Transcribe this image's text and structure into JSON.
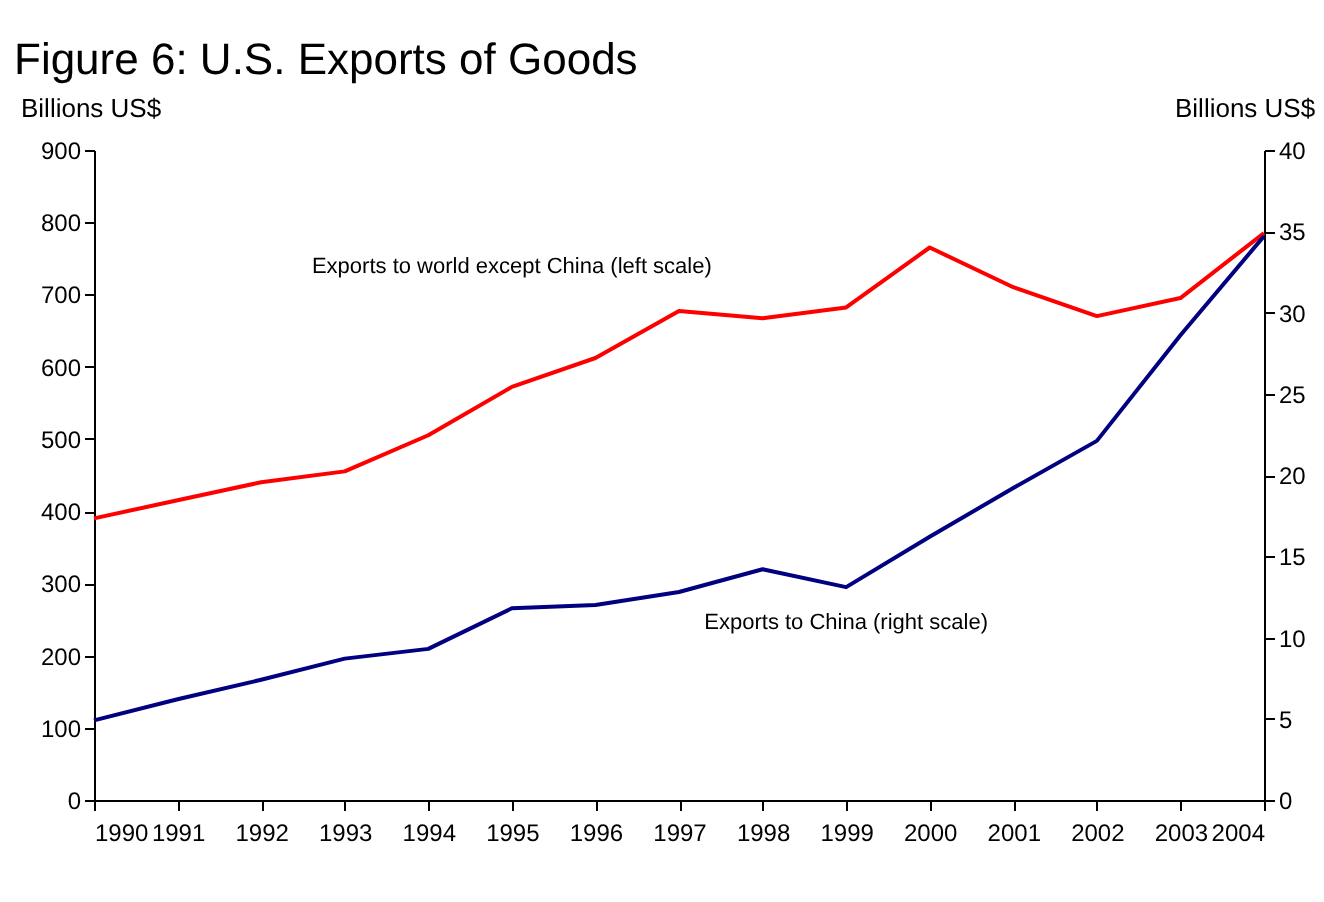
{
  "chart_data": {
    "type": "line",
    "title": "Figure 6: U.S. Exports of Goods",
    "ylabel": "Billions US$",
    "y2label": "Billions US$",
    "x": [
      1990,
      1991,
      1992,
      1993,
      1994,
      1995,
      1996,
      1997,
      1998,
      1999,
      2000,
      2001,
      2002,
      2003,
      2004
    ],
    "xlim": [
      1990,
      2004
    ],
    "xticks": [
      1990,
      1991,
      1992,
      1993,
      1994,
      1995,
      1996,
      1997,
      1998,
      1999,
      2000,
      2001,
      2002,
      2003,
      2004
    ],
    "ylim": [
      0,
      900
    ],
    "yticks": [
      0,
      100,
      200,
      300,
      400,
      500,
      600,
      700,
      800,
      900
    ],
    "y2lim": [
      0,
      40
    ],
    "y2ticks": [
      0,
      5,
      10,
      15,
      20,
      25,
      30,
      35,
      40
    ],
    "series": [
      {
        "name": "Exports to world except China (left scale)",
        "color": "#ff0000",
        "values": [
          390,
          415,
          440,
          455,
          505,
          572,
          612,
          677,
          667,
          682,
          765,
          710,
          670,
          695,
          785
        ]
      },
      {
        "name": "Exports to China (right scale)",
        "color": "#000080",
        "axis": "y2",
        "values": [
          4.9,
          6.2,
          7.4,
          8.7,
          9.3,
          11.8,
          12.0,
          12.8,
          14.2,
          13.1,
          16.2,
          19.2,
          22.1,
          28.6,
          34.7
        ]
      }
    ],
    "line_style": "solid",
    "marker": "none"
  }
}
